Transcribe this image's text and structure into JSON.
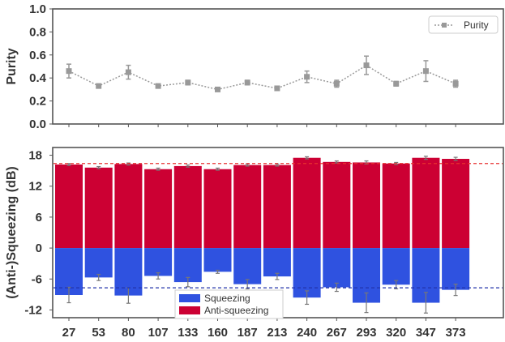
{
  "chart_data": [
    {
      "type": "line",
      "ylabel": "Purity",
      "ylim": [
        0.0,
        1.0
      ],
      "yticks": [
        "1.0",
        "0.8",
        "0.6",
        "0.4",
        "0.2",
        "0.0"
      ],
      "ytick_values": [
        1.0,
        0.8,
        0.6,
        0.4,
        0.2,
        0.0
      ],
      "legend": {
        "label": "Purity",
        "position": "top-right"
      },
      "series": [
        {
          "name": "Purity",
          "color": "#999999",
          "values": [
            0.46,
            0.33,
            0.45,
            0.33,
            0.36,
            0.3,
            0.36,
            0.31,
            0.41,
            0.35,
            0.51,
            0.35,
            0.46,
            0.35
          ],
          "errors": [
            0.06,
            0.01,
            0.06,
            0.01,
            0.02,
            0.01,
            0.02,
            0.01,
            0.05,
            0.03,
            0.08,
            0.02,
            0.09,
            0.03
          ]
        }
      ]
    },
    {
      "type": "bar",
      "ylabel": "(Anti-)Squeezing (dB)",
      "ylim": [
        -13.5,
        19.5
      ],
      "yticks": [
        "18",
        "12",
        "6",
        "0",
        "-6",
        "-12"
      ],
      "ytick_values": [
        18,
        12,
        6,
        0,
        -6,
        -12
      ],
      "categories": [
        "27",
        "53",
        "80",
        "107",
        "133",
        "160",
        "187",
        "213",
        "240",
        "267",
        "293",
        "320",
        "347",
        "373"
      ],
      "legend": {
        "position": "bottom-center",
        "entries": [
          "Squeezing",
          "Anti-squeezing"
        ]
      },
      "series": [
        {
          "name": "Anti-squeezing",
          "color": "#cc0033",
          "values": [
            16.2,
            15.6,
            16.3,
            15.3,
            15.9,
            15.3,
            16.1,
            16.1,
            17.5,
            16.7,
            16.6,
            16.4,
            17.5,
            17.3
          ],
          "errors": [
            0.2,
            0.2,
            0.2,
            0.2,
            0.2,
            0.2,
            0.2,
            0.2,
            0.2,
            0.2,
            0.3,
            0.2,
            0.3,
            0.3
          ]
        },
        {
          "name": "Squeezing",
          "color": "#2f52e0",
          "values": [
            -9.1,
            -5.7,
            -9.2,
            -5.4,
            -6.6,
            -4.6,
            -7.0,
            -5.5,
            -9.6,
            -7.6,
            -10.6,
            -7.1,
            -10.6,
            -8.1
          ],
          "errors": [
            1.5,
            0.6,
            1.5,
            0.6,
            0.9,
            0.3,
            0.9,
            0.6,
            1.3,
            0.8,
            1.9,
            0.8,
            2.0,
            1.1
          ]
        }
      ],
      "reference_lines": [
        {
          "name": "anti-squeezing-reference",
          "y": 16.4,
          "color": "#e83030"
        },
        {
          "name": "squeezing-reference",
          "y": -7.7,
          "color": "#2233aa"
        }
      ]
    }
  ]
}
